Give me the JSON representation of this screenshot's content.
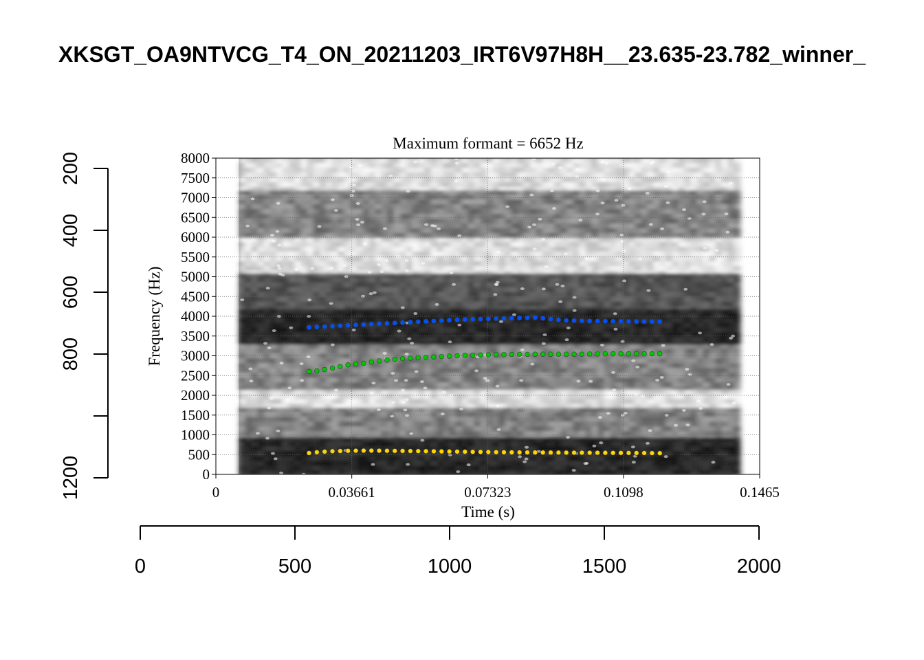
{
  "title": "XKSGT_OA9NTVCG_T4_ON_20211203_IRT6V97H8H__23.635-23.782_winner_",
  "chart_data": [
    {
      "type": "heatmap",
      "title": "Maximum formant  =  6652 Hz",
      "xlabel": "Time (s)",
      "ylabel": "Frequency (Hz)",
      "xlim": [
        0,
        0.1465
      ],
      "ylim": [
        0,
        8000
      ],
      "xticks": [
        "0",
        "0.03661",
        "0.07323",
        "0.1098",
        "0.1465"
      ],
      "xtick_values": [
        0,
        0.03661,
        0.07323,
        0.1098,
        0.1465
      ],
      "yticks": [
        "0",
        "500",
        "1000",
        "1500",
        "2000",
        "2500",
        "3000",
        "3500",
        "4000",
        "4500",
        "5000",
        "5500",
        "6000",
        "6500",
        "7000",
        "7500",
        "8000"
      ],
      "ytick_values": [
        0,
        500,
        1000,
        1500,
        2000,
        2500,
        3000,
        3500,
        4000,
        4500,
        5000,
        5500,
        6000,
        6500,
        7000,
        7500,
        8000
      ],
      "grid": true,
      "spectrogram_span": [
        0.0062,
        0.1396
      ],
      "spectrogram_bands": [
        {
          "from": 0,
          "to": 950,
          "shade": "dark"
        },
        {
          "from": 950,
          "to": 1700,
          "shade": "medium"
        },
        {
          "from": 1700,
          "to": 2150,
          "shade": "light"
        },
        {
          "from": 2150,
          "to": 3300,
          "shade": "medium"
        },
        {
          "from": 3300,
          "to": 4200,
          "shade": "dark"
        },
        {
          "from": 4200,
          "to": 5100,
          "shade": "medium-dark"
        },
        {
          "from": 5100,
          "to": 6000,
          "shade": "light"
        },
        {
          "from": 6000,
          "to": 7200,
          "shade": "medium"
        },
        {
          "from": 7200,
          "to": 8000,
          "shade": "light"
        }
      ],
      "series": [
        {
          "color": "#ffd700",
          "x": [
            0.0251,
            0.0272,
            0.0293,
            0.0314,
            0.0335,
            0.0356,
            0.0377,
            0.0398,
            0.0419,
            0.044,
            0.0461,
            0.0482,
            0.0503,
            0.0524,
            0.0545,
            0.0566,
            0.0587,
            0.0608,
            0.0629,
            0.065,
            0.0671,
            0.0692,
            0.0713,
            0.0734,
            0.0755,
            0.0776,
            0.0797,
            0.0818,
            0.0839,
            0.086,
            0.0881,
            0.0902,
            0.0923,
            0.0944,
            0.0965,
            0.0986,
            0.1007,
            0.1028,
            0.1049,
            0.107,
            0.1091,
            0.1112,
            0.1133,
            0.1154,
            0.1175,
            0.1196
          ],
          "values": [
            540,
            560,
            575,
            585,
            590,
            595,
            598,
            600,
            600,
            598,
            596,
            594,
            592,
            590,
            588,
            585,
            583,
            580,
            578,
            575,
            572,
            570,
            568,
            565,
            562,
            560,
            558,
            556,
            555,
            554,
            553,
            552,
            551,
            550,
            549,
            548,
            547,
            546,
            545,
            544,
            543,
            542,
            541,
            540,
            538,
            536
          ]
        },
        {
          "color": "#00c800",
          "x": [
            0.0251,
            0.0272,
            0.0293,
            0.0314,
            0.0335,
            0.0356,
            0.0377,
            0.0398,
            0.0419,
            0.044,
            0.0461,
            0.0482,
            0.0503,
            0.0524,
            0.0545,
            0.0566,
            0.0587,
            0.0608,
            0.0629,
            0.065,
            0.0671,
            0.0692,
            0.0713,
            0.0734,
            0.0755,
            0.0776,
            0.0797,
            0.0818,
            0.0839,
            0.086,
            0.0881,
            0.0902,
            0.0923,
            0.0944,
            0.0965,
            0.0986,
            0.1007,
            0.1028,
            0.1049,
            0.107,
            0.1091,
            0.1112,
            0.1133,
            0.1154,
            0.1175,
            0.1196
          ],
          "values": [
            2600,
            2620,
            2650,
            2690,
            2730,
            2770,
            2790,
            2810,
            2840,
            2870,
            2890,
            2910,
            2930,
            2940,
            2950,
            2960,
            2970,
            2980,
            2990,
            3000,
            3010,
            3015,
            3020,
            3025,
            3030,
            3030,
            3035,
            3035,
            3035,
            3040,
            3040,
            3040,
            3040,
            3040,
            3040,
            3040,
            3045,
            3045,
            3050,
            3050,
            3050,
            3050,
            3050,
            3050,
            3050,
            3050
          ]
        },
        {
          "color": "#0050ff",
          "x": [
            0.0251,
            0.0272,
            0.0293,
            0.0314,
            0.0335,
            0.0356,
            0.0377,
            0.0398,
            0.0419,
            0.044,
            0.0461,
            0.0482,
            0.0503,
            0.0524,
            0.0545,
            0.0566,
            0.0587,
            0.0608,
            0.0629,
            0.065,
            0.0671,
            0.0692,
            0.0713,
            0.0734,
            0.0755,
            0.0776,
            0.0797,
            0.0818,
            0.0839,
            0.086,
            0.0881,
            0.0902,
            0.0923,
            0.0944,
            0.0965,
            0.0986,
            0.1007,
            0.1028,
            0.1049,
            0.107,
            0.1091,
            0.1112,
            0.1133,
            0.1154,
            0.1175,
            0.1196
          ],
          "values": [
            3720,
            3730,
            3740,
            3750,
            3760,
            3770,
            3780,
            3790,
            3800,
            3810,
            3820,
            3830,
            3840,
            3850,
            3860,
            3870,
            3880,
            3890,
            3900,
            3910,
            3920,
            3925,
            3930,
            3935,
            3940,
            3945,
            3950,
            3955,
            3960,
            3965,
            3950,
            3930,
            3910,
            3895,
            3890,
            3885,
            3880,
            3878,
            3876,
            3874,
            3872,
            3870,
            3868,
            3866,
            3865,
            3864
          ]
        }
      ]
    },
    {
      "type": "axes",
      "x_ticks": [
        "0",
        "500",
        "1000",
        "1500",
        "2000"
      ],
      "x_tick_values": [
        0,
        500,
        1000,
        1500,
        2000
      ],
      "xlim": [
        0,
        2000
      ],
      "y_ticks": [
        "200",
        "400",
        "600",
        "800",
        "",
        "1200"
      ],
      "y_tick_values": [
        200,
        400,
        600,
        800,
        1000,
        1200
      ],
      "ylim": [
        1200,
        200
      ],
      "y_reversed": true
    }
  ]
}
